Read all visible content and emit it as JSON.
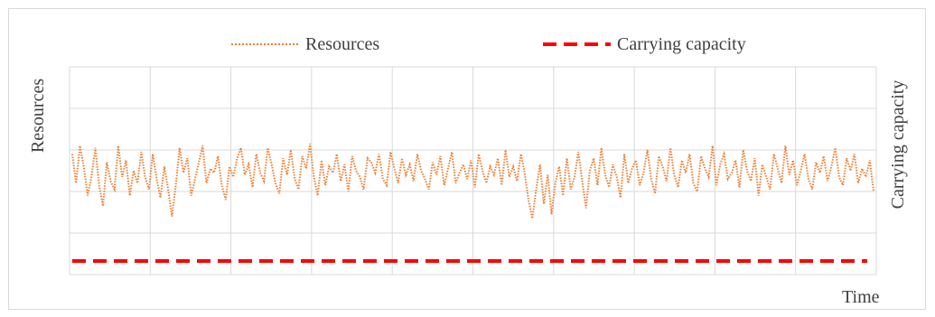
{
  "colors": {
    "resources": "#ED7D31",
    "carrying_capacity": "#FF0000",
    "grid": "#d9d9d9",
    "text": "#404040"
  },
  "legend": {
    "resources": "Resources",
    "carrying_capacity": "Carrying capacity"
  },
  "axes": {
    "y_left_label": "Resources",
    "y_right_label": "Carrying capacity",
    "x_label": "Time"
  },
  "chart_data": {
    "type": "line",
    "title": "",
    "xlabel": "Time",
    "ylabel": "Resources",
    "y2label": "Carrying capacity",
    "ylim": [
      0,
      100
    ],
    "grid": true,
    "legend_position": "top",
    "x_ticks": 10,
    "series": [
      {
        "name": "Resources",
        "style": "dotted",
        "axis": "left",
        "values": [
          58,
          44,
          62,
          52,
          38,
          47,
          61,
          43,
          33,
          54,
          45,
          41,
          62,
          47,
          55,
          38,
          50,
          44,
          59,
          47,
          41,
          58,
          46,
          37,
          52,
          41,
          28,
          43,
          61,
          49,
          56,
          38,
          46,
          54,
          62,
          44,
          51,
          49,
          57,
          43,
          36,
          52,
          47,
          56,
          61,
          48,
          53,
          42,
          58,
          49,
          45,
          61,
          53,
          44,
          39,
          56,
          48,
          60,
          46,
          41,
          57,
          51,
          63,
          47,
          38,
          55,
          43,
          52,
          49,
          58,
          45,
          53,
          40,
          57,
          50,
          47,
          41,
          56,
          54,
          49,
          58,
          46,
          43,
          59,
          51,
          44,
          56,
          48,
          53,
          45,
          58,
          50,
          46,
          41,
          54,
          48,
          57,
          43,
          51,
          59,
          44,
          49,
          53,
          46,
          55,
          42,
          58,
          50,
          44,
          52,
          48,
          56,
          43,
          60,
          47,
          52,
          45,
          58,
          49,
          36,
          27,
          41,
          53,
          34,
          48,
          29,
          44,
          52,
          38,
          56,
          41,
          47,
          59,
          45,
          32,
          50,
          56,
          43,
          61,
          48,
          42,
          53,
          47,
          37,
          58,
          44,
          51,
          55,
          43,
          49,
          60,
          46,
          39,
          57,
          52,
          45,
          61,
          48,
          42,
          55,
          49,
          58,
          44,
          40,
          57,
          51,
          47,
          62,
          43,
          53,
          58,
          46,
          49,
          55,
          42,
          60,
          50,
          45,
          56,
          38,
          53,
          47,
          41,
          58,
          51,
          44,
          62,
          48,
          55,
          43,
          50,
          58,
          46,
          41,
          54,
          49,
          57,
          45,
          52,
          61,
          47,
          43,
          56,
          50,
          58,
          44,
          51,
          47,
          55,
          40
        ]
      },
      {
        "name": "Carrying capacity",
        "style": "dashed",
        "axis": "right",
        "values": [
          0,
          0
        ]
      }
    ]
  }
}
